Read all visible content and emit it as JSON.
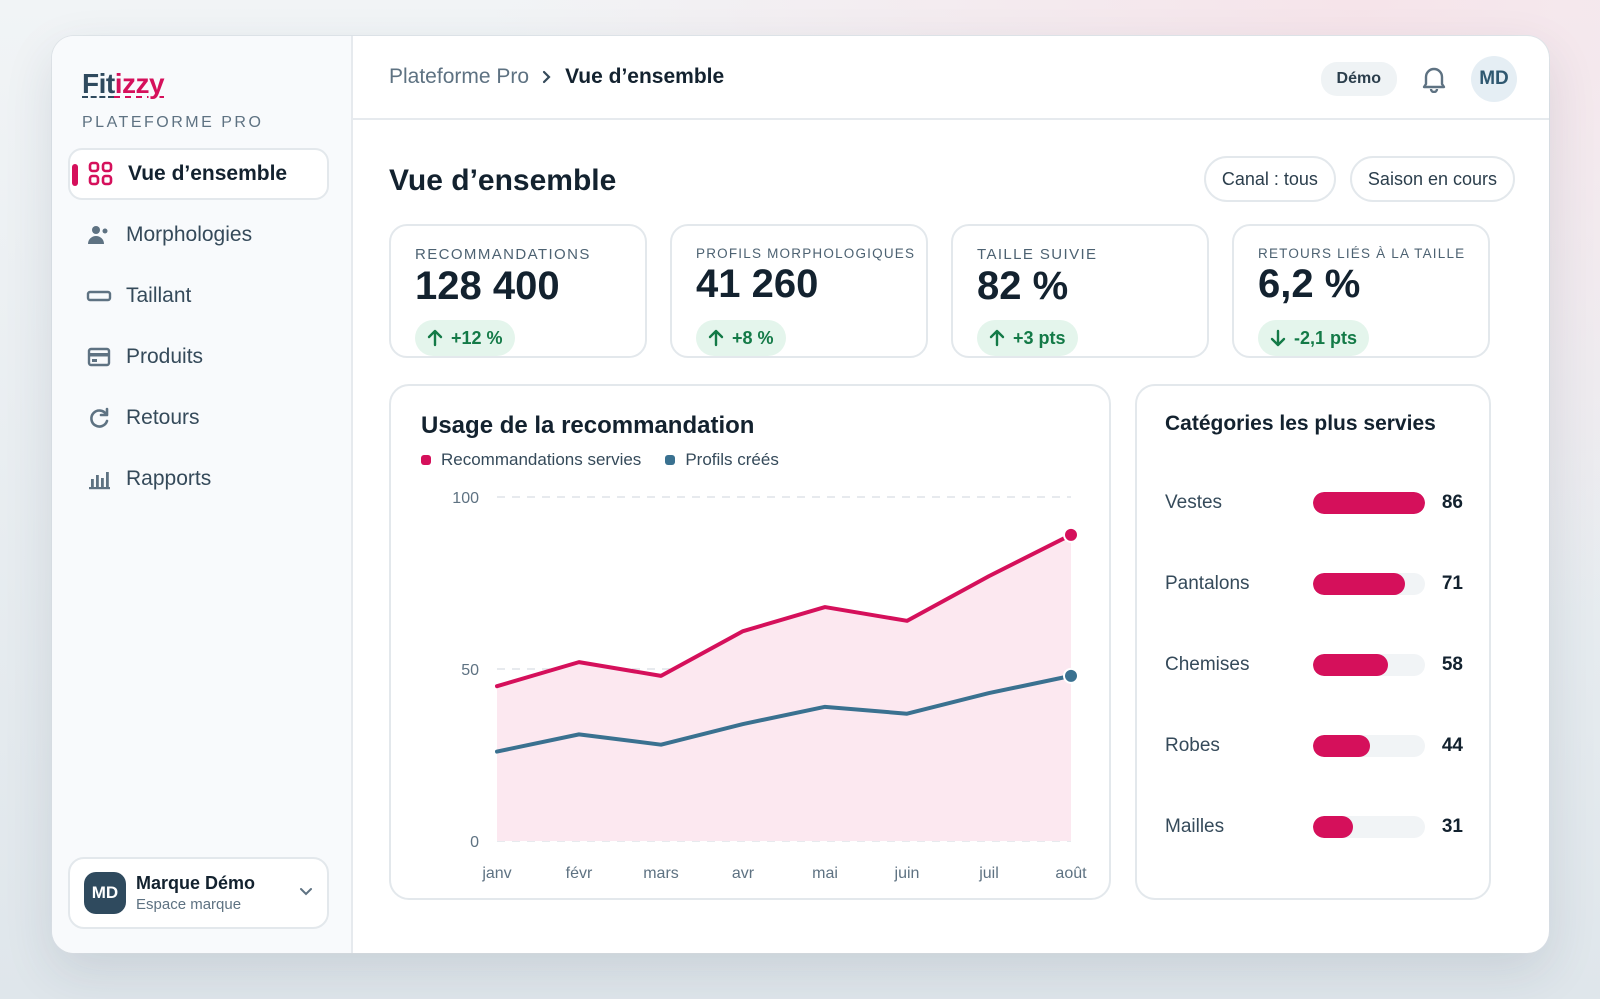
{
  "brand": {
    "name_part1": "Fit",
    "name_part2": "izzy",
    "subtitle": "PLATEFORME PRO",
    "accent": "#d5105b",
    "secondary": "#2f4a5e"
  },
  "sidebar": {
    "items": [
      {
        "label": "Vue d’ensemble",
        "icon": "grid-icon",
        "active": true
      },
      {
        "label": "Morphologies",
        "icon": "users-icon"
      },
      {
        "label": "Taillant",
        "icon": "ruler-icon"
      },
      {
        "label": "Produits",
        "icon": "card-icon"
      },
      {
        "label": "Retours",
        "icon": "refresh-icon"
      },
      {
        "label": "Rapports",
        "icon": "bar-chart-icon"
      }
    ],
    "account": {
      "initials": "MD",
      "name": "Marque Démo",
      "subtitle": "Espace marque"
    }
  },
  "topbar": {
    "breadcrumb_root": "Plateforme Pro",
    "breadcrumb_current": "Vue d’ensemble",
    "demo_label": "Démo",
    "avatar_initials": "MD"
  },
  "page": {
    "title": "Vue d’ensemble",
    "filters": [
      "Canal : tous",
      "Saison en cours"
    ]
  },
  "kpis": [
    {
      "label": "RECOMMANDATIONS",
      "value": "128 400",
      "delta": "+12 %",
      "direction": "up"
    },
    {
      "label": "PROFILS MORPHOLOGIQUES",
      "value": "41 260",
      "delta": "+8 %",
      "direction": "up"
    },
    {
      "label": "TAILLE SUIVIE",
      "value": "82 %",
      "delta": "+3 pts",
      "direction": "up"
    },
    {
      "label": "RETOURS LIÉS À LA TAILLE",
      "value": "6,2 %",
      "delta": "-2,1 pts",
      "direction": "down"
    }
  ],
  "usage_card": {
    "title": "Usage de la recommandation"
  },
  "categories_card": {
    "title": "Catégories les plus servies"
  },
  "chart_data": [
    {
      "type": "area",
      "title": "Usage de la recommandation",
      "categories": [
        "janv",
        "févr",
        "mars",
        "avr",
        "mai",
        "juin",
        "juil",
        "août"
      ],
      "ylim": [
        0,
        100
      ],
      "yticks": [
        "100",
        "50",
        "0"
      ],
      "grid": true,
      "legend": "top-left",
      "series": [
        {
          "name": "Recommandations servies",
          "color": "#d5105b",
          "values": [
            45,
            52,
            48,
            61,
            68,
            64,
            77,
            89
          ]
        },
        {
          "name": "Profils créés",
          "color": "#3a7190",
          "values": [
            26,
            31,
            28,
            34,
            39,
            37,
            43,
            48
          ]
        }
      ]
    },
    {
      "type": "bar",
      "title": "Catégories les plus servies",
      "categories": [
        "Vestes",
        "Pantalons",
        "Chemises",
        "Robes",
        "Mailles"
      ],
      "values": [
        86,
        71,
        58,
        44,
        31
      ],
      "value_labels": [
        "86",
        "71",
        "58",
        "44",
        "31"
      ],
      "max": 100,
      "color": "#d5105b"
    }
  ]
}
